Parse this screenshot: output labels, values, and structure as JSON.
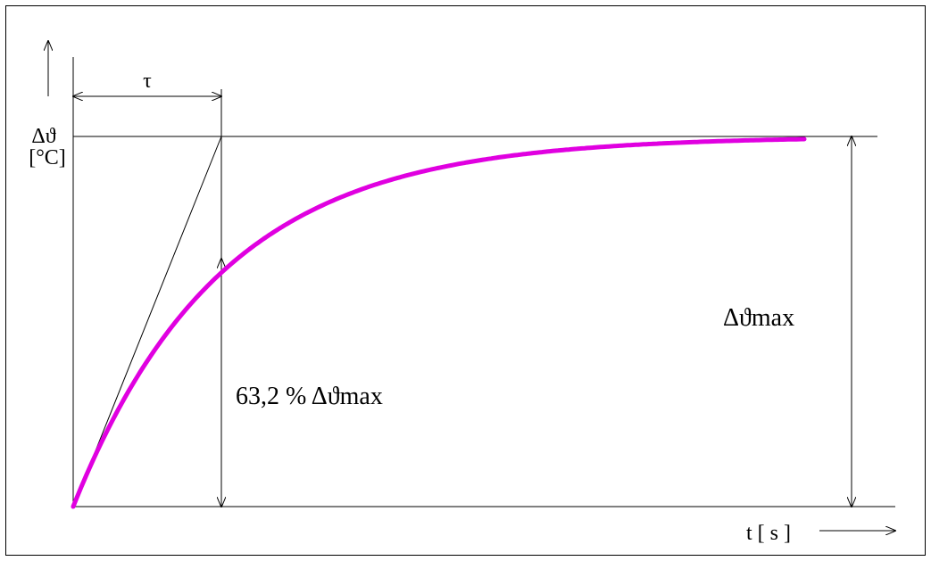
{
  "diagram": {
    "y_label_line1": "Δϑ",
    "y_label_line2": "[°C]",
    "tau_label": "τ",
    "x_label": "t [ s ]",
    "dmax_label": "Δϑmax",
    "percent_label": "63,2 % Δϑmax",
    "curve_color": "#e000e0",
    "line_color": "#000000"
  }
}
